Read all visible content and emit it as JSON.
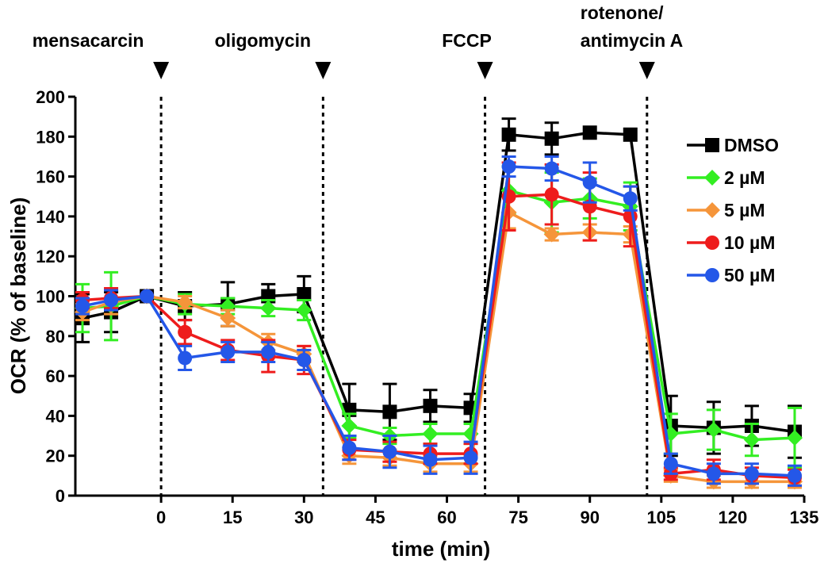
{
  "chart_data": {
    "type": "line",
    "xlabel": "time (min)",
    "ylabel": "OCR (% of baseline)",
    "xlim": [
      -18,
      135
    ],
    "ylim": [
      0,
      200
    ],
    "xticks": [
      0,
      15,
      30,
      45,
      60,
      75,
      90,
      105,
      120,
      135
    ],
    "yticks": [
      0,
      20,
      40,
      60,
      80,
      100,
      120,
      140,
      160,
      180,
      200
    ],
    "grid": false,
    "legend_position": "right",
    "injections": [
      {
        "label": "mensacarcin",
        "x": 0
      },
      {
        "label": "oligomycin",
        "x": 34
      },
      {
        "label": "FCCP",
        "x": 68
      },
      {
        "label": "rotenone/\nantimycin A",
        "x": 102
      }
    ],
    "x": [
      -16.5,
      -10.5,
      -3,
      5,
      14,
      22.5,
      30,
      39.5,
      48,
      56.5,
      65,
      73,
      82,
      90,
      98.5,
      107,
      116,
      124,
      133
    ],
    "series": [
      {
        "name": "DMSO",
        "color": "#000000",
        "marker": "square",
        "values": [
          89,
          92,
          100,
          95,
          96,
          100,
          101,
          43,
          42,
          45,
          44,
          181,
          179,
          182,
          181,
          35,
          34,
          35,
          32
        ],
        "errors": [
          12,
          10,
          0,
          7,
          11,
          6,
          9,
          13,
          14,
          8,
          7,
          8,
          8,
          0,
          0,
          15,
          13,
          10,
          13
        ]
      },
      {
        "name": "2 µM",
        "color": "#33ee22",
        "marker": "diamond",
        "values": [
          94,
          95,
          100,
          96,
          95,
          94,
          93,
          35,
          30,
          31,
          31,
          153,
          147,
          149,
          145,
          31,
          33,
          28,
          29
        ],
        "errors": [
          12,
          17,
          0,
          5,
          4,
          4,
          5,
          6,
          4,
          5,
          5,
          12,
          15,
          10,
          12,
          10,
          10,
          8,
          15
        ]
      },
      {
        "name": "5 µM",
        "color": "#f5953a",
        "marker": "diamond",
        "values": [
          92,
          97,
          100,
          97,
          89,
          77,
          71,
          20,
          19,
          16,
          16,
          142,
          131,
          132,
          131,
          10,
          7,
          7,
          7
        ],
        "errors": [
          4,
          6,
          0,
          3,
          4,
          4,
          4,
          4,
          4,
          4,
          4,
          8,
          3,
          4,
          4,
          3,
          3,
          3,
          3
        ]
      },
      {
        "name": "10 µM",
        "color": "#ee1c1c",
        "marker": "circle",
        "values": [
          98,
          99,
          100,
          82,
          73,
          70,
          68,
          23,
          22,
          21,
          21,
          150,
          151,
          145,
          140,
          11,
          13,
          10,
          9
        ],
        "errors": [
          4,
          5,
          0,
          6,
          5,
          8,
          7,
          5,
          5,
          5,
          5,
          17,
          15,
          17,
          15,
          3,
          5,
          4,
          4
        ]
      },
      {
        "name": "50 µM",
        "color": "#2457e8",
        "marker": "circle",
        "values": [
          95,
          98,
          100,
          69,
          72,
          72,
          68,
          24,
          22,
          18,
          19,
          165,
          164,
          157,
          149,
          16,
          11,
          11,
          10
        ],
        "errors": [
          4,
          5,
          0,
          6,
          5,
          5,
          5,
          6,
          8,
          7,
          8,
          5,
          6,
          10,
          6,
          5,
          5,
          5,
          5
        ]
      }
    ]
  }
}
